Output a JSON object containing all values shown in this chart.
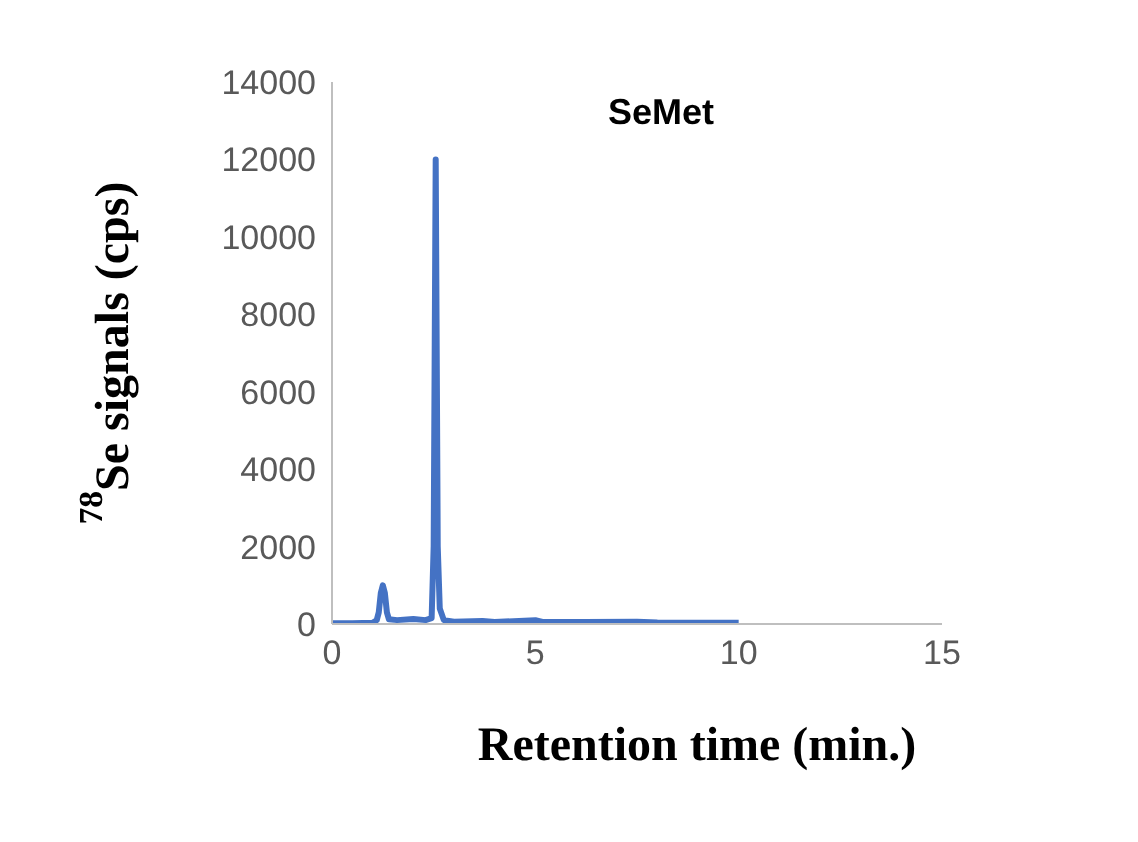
{
  "chart_data": {
    "type": "line",
    "xlabel": "Retention time (min.)",
    "ylabel": "$^{78}$Se signals (cps)",
    "annotations": [
      "SeMet"
    ],
    "x": [
      0,
      0.5,
      1.0,
      1.1,
      1.15,
      1.2,
      1.25,
      1.3,
      1.35,
      1.4,
      1.6,
      2.0,
      2.3,
      2.45,
      2.5,
      2.55,
      2.6,
      2.65,
      2.75,
      3.0,
      3.7,
      4.0,
      5.0,
      5.2,
      6.2,
      7.5,
      8.0,
      10.0
    ],
    "series": [
      {
        "color": "#4472c4",
        "values": [
          20,
          20,
          30,
          100,
          300,
          800,
          1000,
          800,
          300,
          120,
          100,
          130,
          100,
          150,
          2000,
          12000,
          2000,
          400,
          100,
          60,
          80,
          50,
          100,
          50,
          50,
          60,
          40,
          30
        ]
      }
    ],
    "xlim": [
      0,
      15
    ],
    "xticks": [
      0,
      5,
      10,
      15
    ],
    "ylim": [
      0,
      14000
    ],
    "yticks": [
      0,
      2000,
      4000,
      6000,
      8000,
      10000,
      12000,
      14000
    ],
    "grid": false,
    "marker": "none",
    "line_style": "solid"
  }
}
